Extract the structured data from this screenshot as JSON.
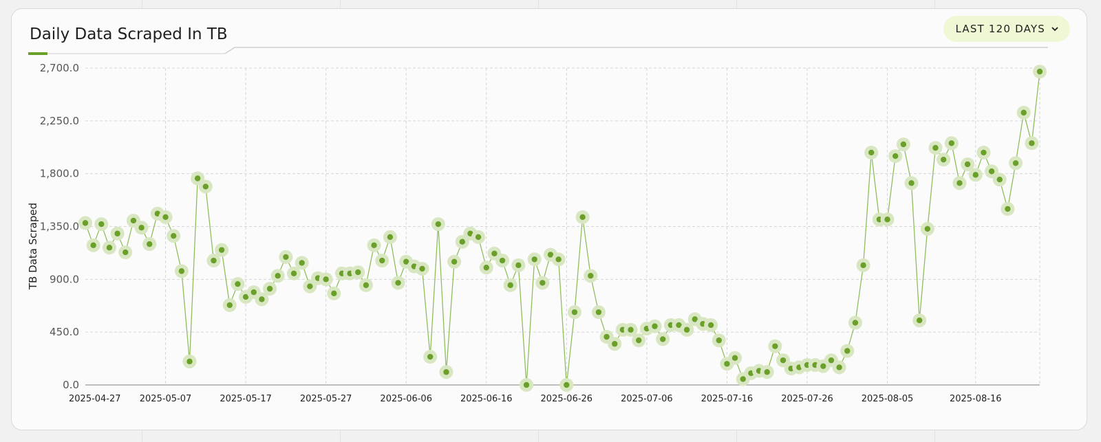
{
  "header": {
    "title": "Daily Data Scraped In TB",
    "range_label": "LAST 120 DAYS"
  },
  "colors": {
    "accent": "#6a9f2a",
    "marker_halo": "#d8e7c2",
    "line": "#8fbe5c",
    "button_bg": "#eef8d4"
  },
  "icons": {
    "range_button": "chevron-down-icon"
  },
  "chart_data": {
    "type": "line",
    "title": "Daily Data Scraped In TB",
    "xlabel": "",
    "ylabel": "TB Data Scraped",
    "ylim": [
      0,
      2700
    ],
    "yticks": [
      0,
      450,
      900,
      1350,
      1800,
      2250,
      2700
    ],
    "ytick_labels": [
      "0.0",
      "450.0",
      "900.0",
      "1,350.0",
      "1,800.0",
      "2,250.0",
      "2,700.0"
    ],
    "x_start": "2025-04-27",
    "xtick_labels": [
      "2025-04-27",
      "2025-05-07",
      "2025-05-17",
      "2025-05-27",
      "2025-06-06",
      "2025-06-16",
      "2025-06-26",
      "2025-07-06",
      "2025-07-16",
      "2025-07-26",
      "2025-08-05",
      "2025-08-16"
    ],
    "grid": true,
    "series": [
      {
        "name": "",
        "values": [
          1380,
          1190,
          1370,
          1170,
          1290,
          1130,
          1400,
          1340,
          1200,
          1460,
          1430,
          1270,
          970,
          200,
          1760,
          1690,
          1060,
          1150,
          680,
          860,
          750,
          790,
          730,
          820,
          930,
          1090,
          950,
          1040,
          840,
          910,
          900,
          780,
          950,
          950,
          960,
          850,
          1190,
          1060,
          1260,
          870,
          1050,
          1010,
          990,
          240,
          1370,
          110,
          1050,
          1220,
          1290,
          1260,
          1000,
          1120,
          1060,
          850,
          1020,
          0,
          1070,
          870,
          1110,
          1070,
          0,
          620,
          1430,
          930,
          620,
          410,
          350,
          470,
          470,
          380,
          480,
          500,
          390,
          510,
          510,
          470,
          560,
          520,
          510,
          380,
          180,
          230,
          50,
          100,
          120,
          110,
          330,
          210,
          140,
          150,
          170,
          170,
          160,
          210,
          150,
          290,
          530,
          1020,
          1980,
          1410,
          1410,
          1950,
          2050,
          1720,
          550,
          1330,
          2020,
          1920,
          2060,
          1720,
          1880,
          1790,
          1980,
          1820,
          1750,
          1500,
          1890,
          2320,
          2060,
          2670
        ]
      }
    ]
  }
}
